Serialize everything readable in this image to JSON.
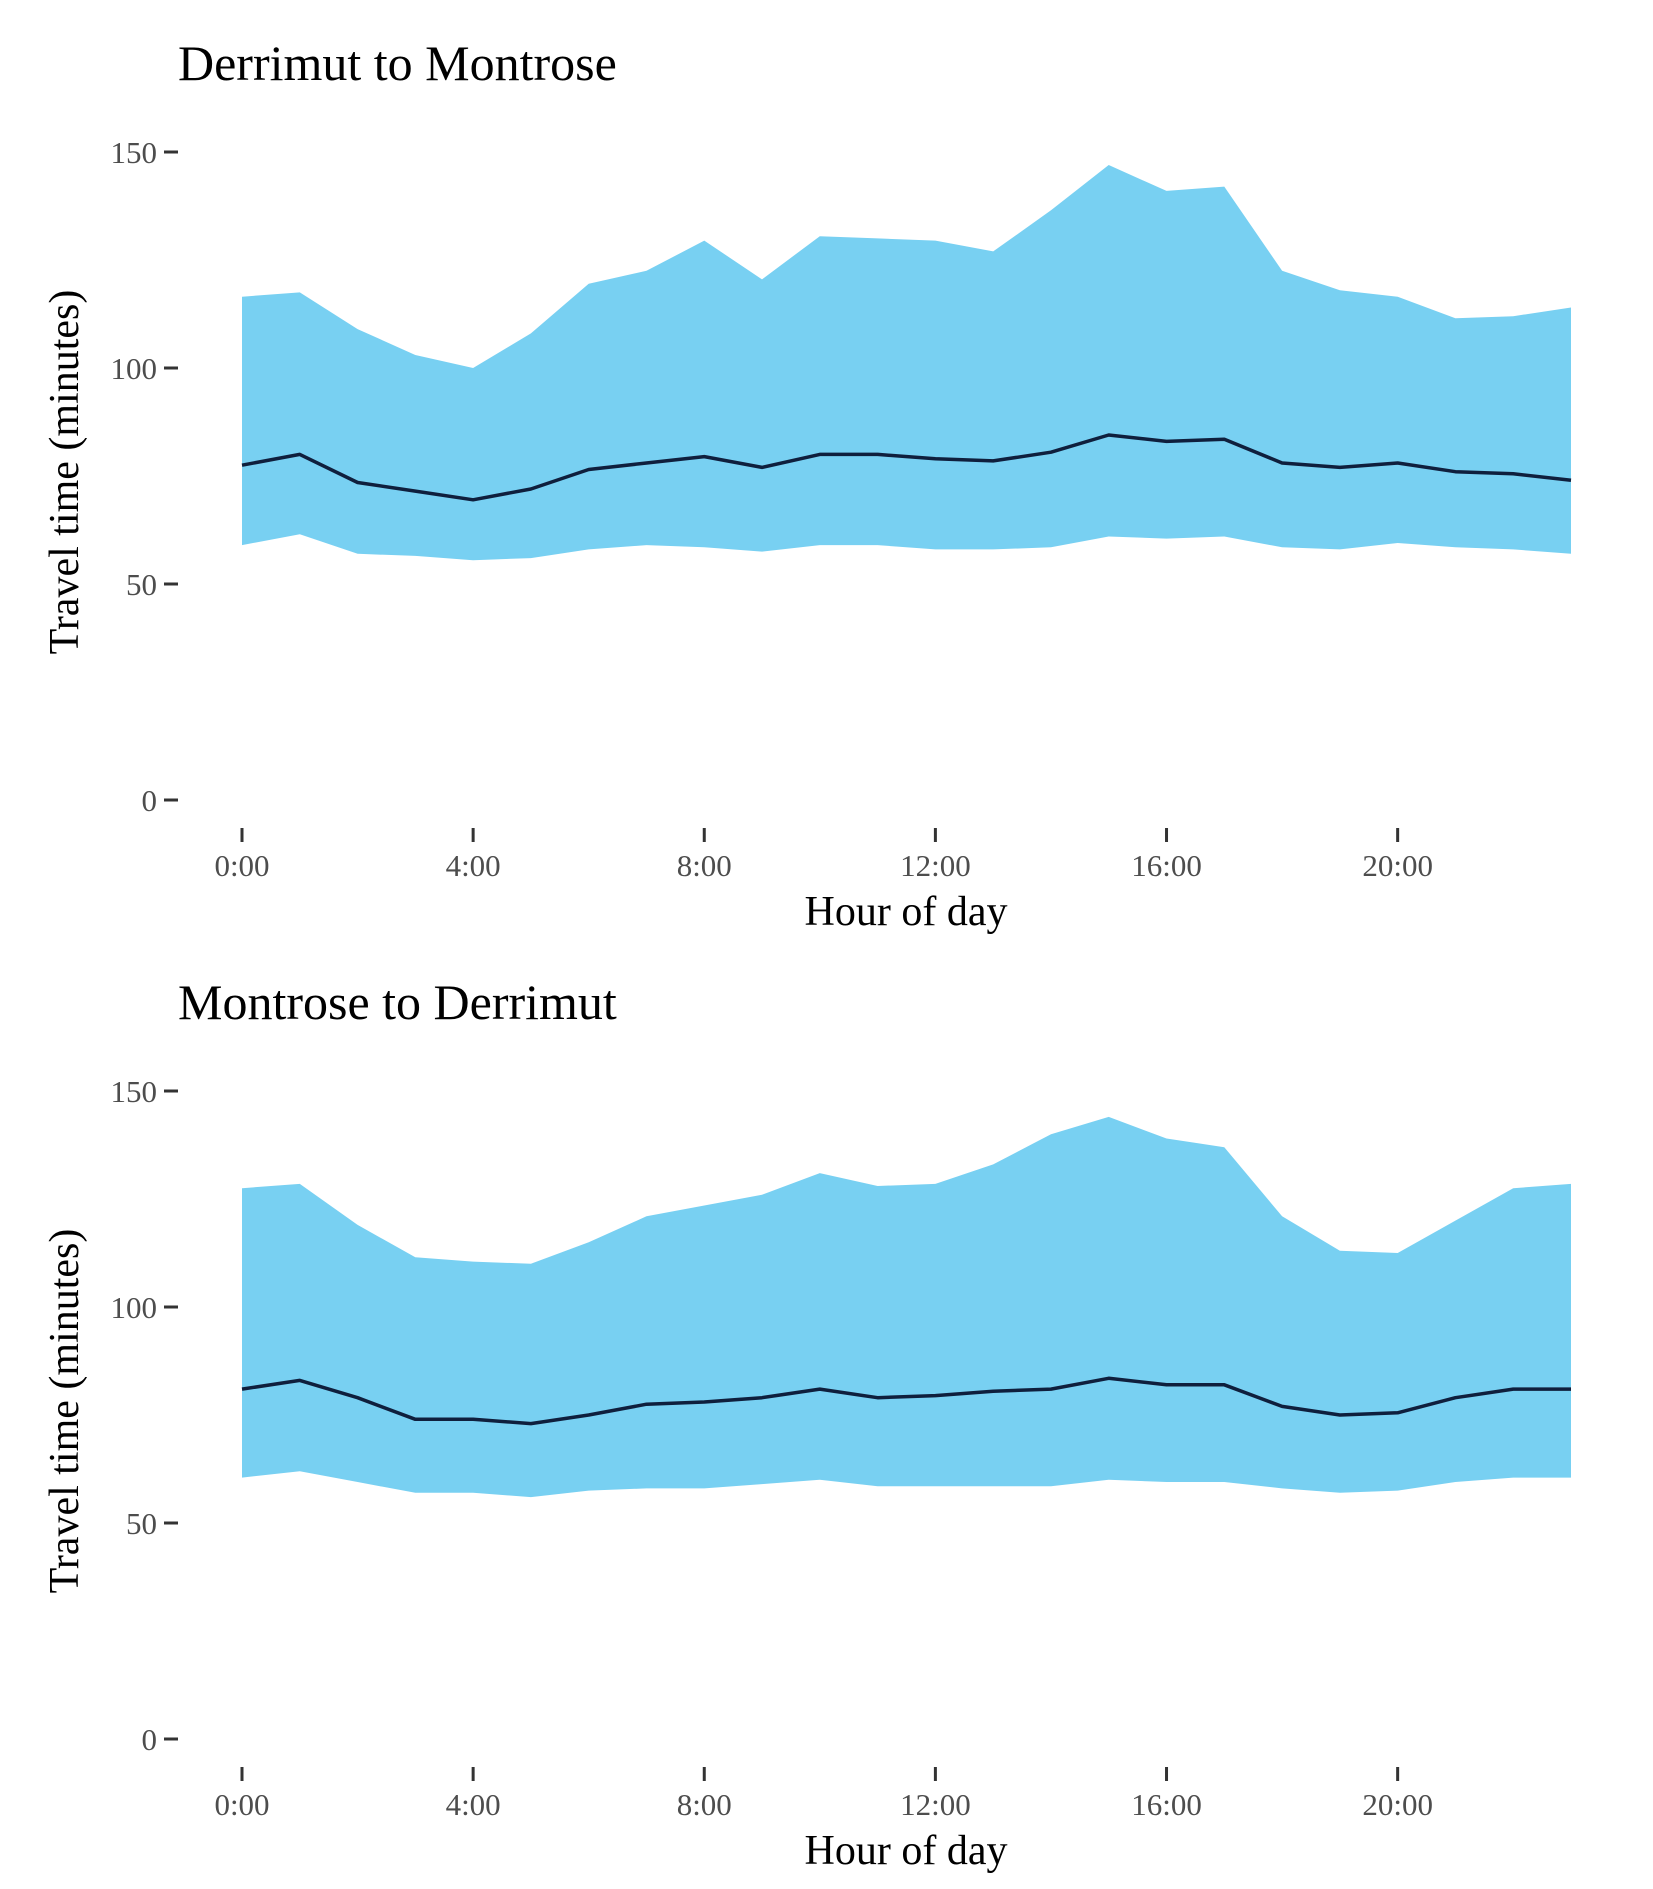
{
  "chart_data": [
    {
      "type": "area",
      "title": "Derrimut to Montrose",
      "xlabel": "Hour of day",
      "ylabel": "Travel time (minutes)",
      "x_ticks": [
        0,
        4,
        8,
        12,
        16,
        20
      ],
      "x_tick_labels": [
        "0:00",
        "4:00",
        "8:00",
        "12:00",
        "16:00",
        "20:00"
      ],
      "y_ticks": [
        0,
        50,
        100,
        150
      ],
      "y_tick_labels": [
        "0",
        "50",
        "100",
        "150"
      ],
      "xlim": [
        0,
        23
      ],
      "ylim": [
        0,
        150
      ],
      "grid": false,
      "legend": "none",
      "band_color": "#78d0f2",
      "line_color": "#0f1f3d",
      "x": [
        0,
        1,
        2,
        3,
        4,
        5,
        6,
        7,
        8,
        9,
        10,
        11,
        12,
        13,
        14,
        15,
        16,
        17,
        18,
        19,
        20,
        21,
        22,
        23
      ],
      "series": [
        {
          "role": "upper band",
          "values": [
            116.5,
            117.5,
            109,
            103,
            100,
            108,
            119.5,
            122.5,
            129.5,
            120.5,
            130.5,
            130,
            129.5,
            127,
            136.5,
            147,
            141,
            142,
            122.5,
            118,
            116.5,
            111.5,
            112,
            114
          ]
        },
        {
          "role": "median line",
          "values": [
            77.5,
            80,
            73.5,
            71.5,
            69.5,
            72,
            76.5,
            78,
            79.5,
            77,
            80,
            80,
            79,
            78.5,
            80.5,
            84.5,
            83,
            83.5,
            78,
            77,
            78,
            76,
            75.5,
            74
          ]
        },
        {
          "role": "lower band",
          "values": [
            59,
            61.5,
            57,
            56.5,
            55.5,
            56,
            58,
            59,
            58.5,
            57.5,
            59,
            59,
            58,
            58,
            58.5,
            61,
            60.5,
            61,
            58.5,
            58,
            59.5,
            58.5,
            58,
            57
          ]
        }
      ]
    },
    {
      "type": "area",
      "title": "Montrose to Derrimut",
      "xlabel": "Hour of day",
      "ylabel": "Travel time (minutes)",
      "x_ticks": [
        0,
        4,
        8,
        12,
        16,
        20
      ],
      "x_tick_labels": [
        "0:00",
        "4:00",
        "8:00",
        "12:00",
        "16:00",
        "20:00"
      ],
      "y_ticks": [
        0,
        50,
        100,
        150
      ],
      "y_tick_labels": [
        "0",
        "50",
        "100",
        "150"
      ],
      "xlim": [
        0,
        23
      ],
      "ylim": [
        0,
        150
      ],
      "grid": false,
      "legend": "none",
      "band_color": "#78d0f2",
      "line_color": "#0f1f3d",
      "x": [
        0,
        1,
        2,
        3,
        4,
        5,
        6,
        7,
        8,
        9,
        10,
        11,
        12,
        13,
        14,
        15,
        16,
        17,
        18,
        19,
        20,
        21,
        22,
        23
      ],
      "series": [
        {
          "role": "upper band",
          "values": [
            127.5,
            128.5,
            119,
            111.5,
            110.5,
            110,
            115,
            121,
            123.5,
            126,
            131,
            128,
            128.5,
            133,
            140,
            144,
            139,
            137,
            121,
            113,
            112.5,
            120,
            127.5,
            128.5
          ]
        },
        {
          "role": "median line",
          "values": [
            81,
            83,
            79,
            74,
            74,
            73,
            75,
            77.5,
            78,
            79,
            81,
            79,
            79.5,
            80.5,
            81,
            83.5,
            82,
            82,
            77,
            75,
            75.5,
            79,
            81,
            81
          ]
        },
        {
          "role": "lower band",
          "values": [
            60.5,
            62,
            59.5,
            57,
            57,
            56,
            57.5,
            58,
            58,
            59,
            60,
            58.5,
            58.5,
            58.5,
            58.5,
            60,
            59.5,
            59.5,
            58,
            57,
            57.5,
            59.5,
            60.5,
            60.5
          ]
        }
      ]
    }
  ]
}
